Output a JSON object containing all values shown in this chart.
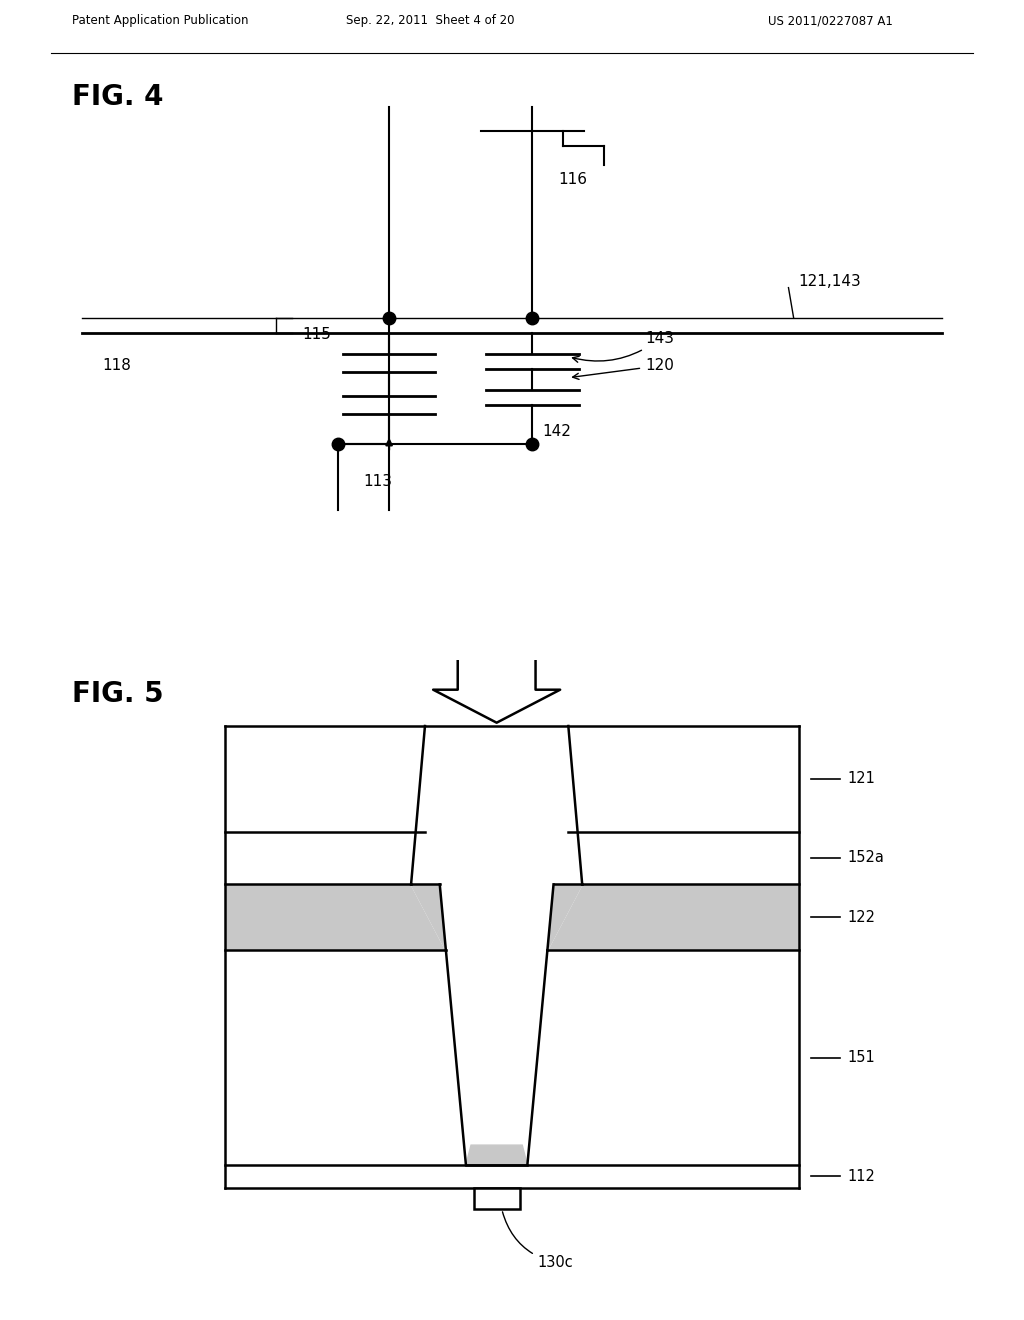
{
  "fig4_title": "FIG. 4",
  "fig5_title": "FIG. 5",
  "header_left": "Patent Application Publication",
  "header_mid": "Sep. 22, 2011  Sheet 4 of 20",
  "header_right": "US 2011/0227087 A1",
  "bg_color": "#ffffff",
  "line_color": "#000000",
  "light_gray": "#c8c8c8"
}
